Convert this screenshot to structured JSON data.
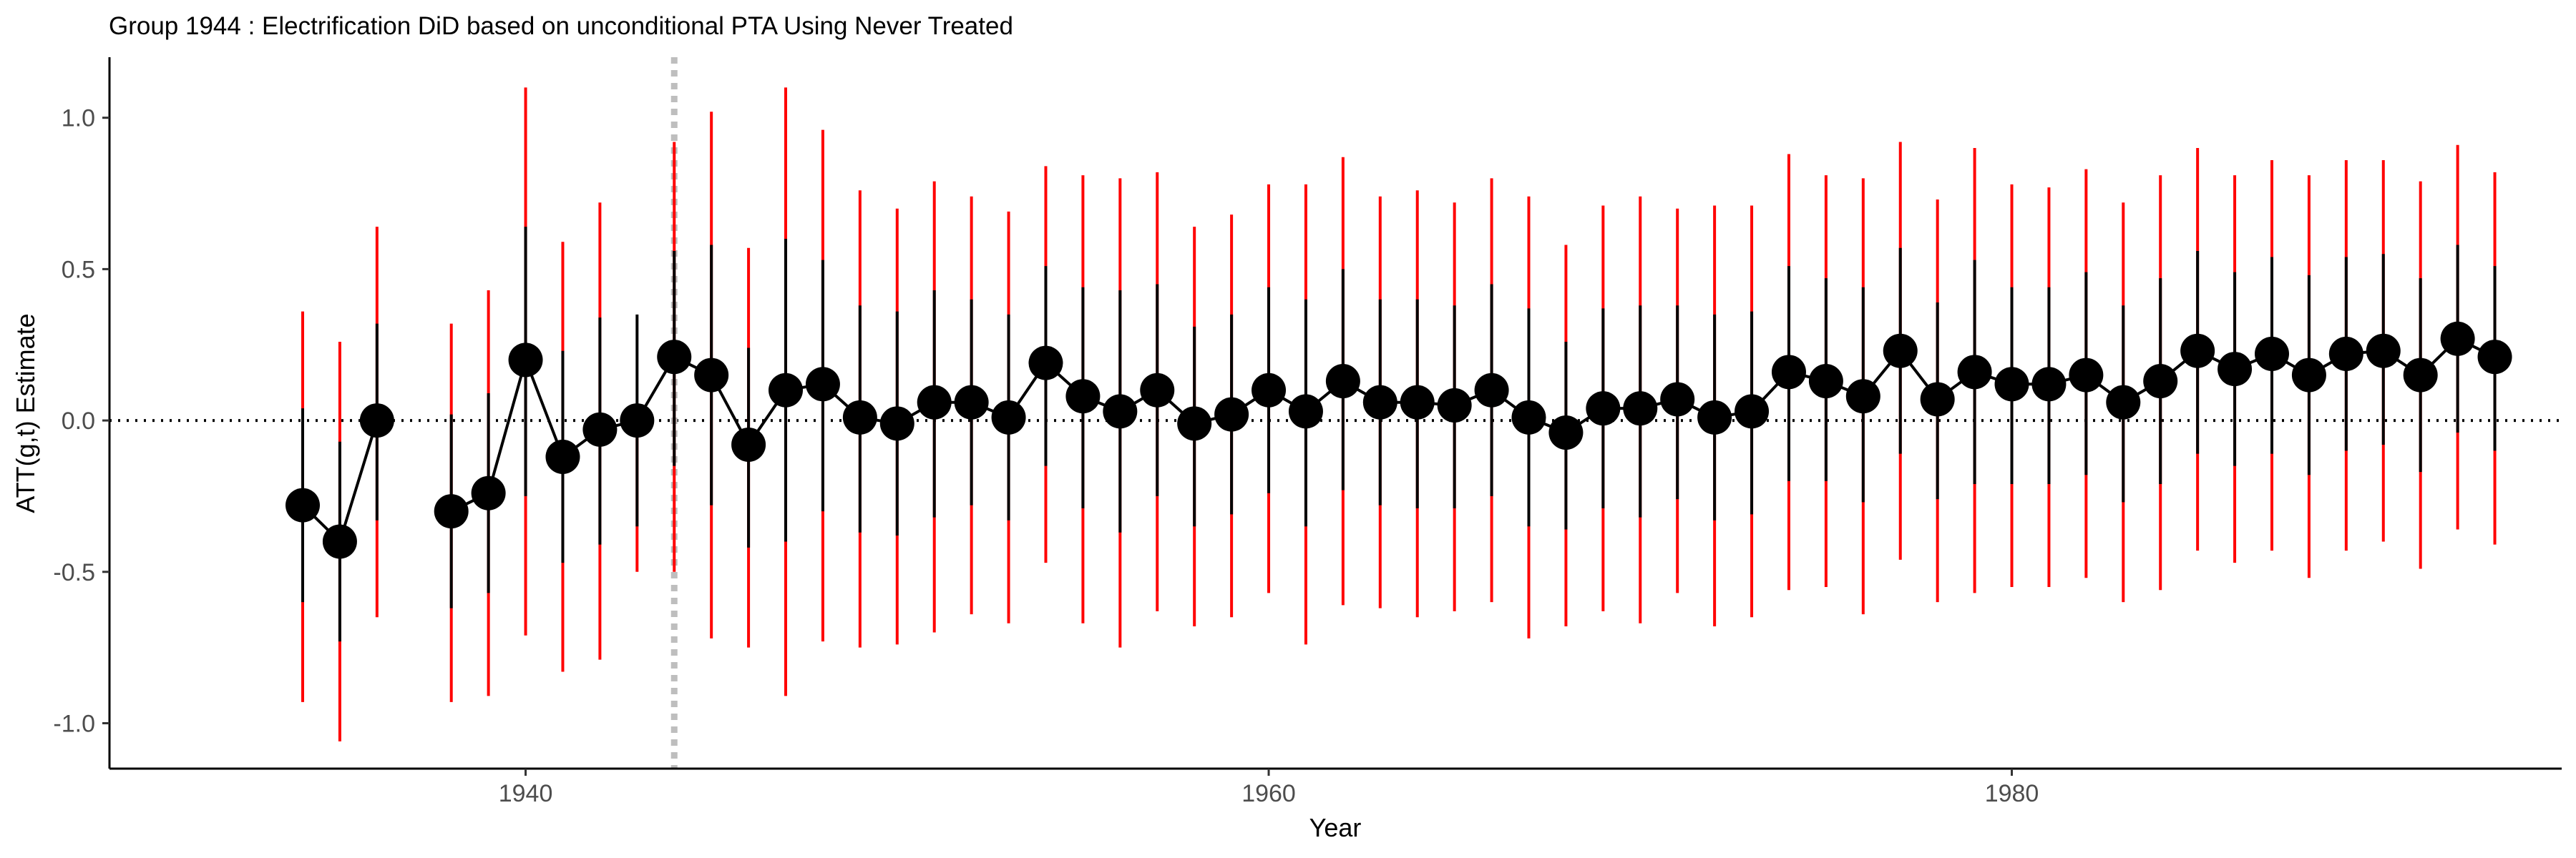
{
  "chart_data": {
    "type": "scatter",
    "title": "Group 1944 : Electrification DiD based on unconditional PTA Using Never Treated",
    "xlabel": "Year",
    "ylabel": "ATT(g,t) Estimate",
    "xlim": [
      1928.8,
      1994.8
    ],
    "ylim": [
      -1.15,
      1.2
    ],
    "x_ticks": [
      1940,
      1960,
      1980
    ],
    "y_ticks": [
      -1.0,
      -0.5,
      0.0,
      0.5,
      1.0
    ],
    "x_tick_labels": [
      "1940",
      "1960",
      "1980"
    ],
    "y_tick_labels": [
      "-1.0",
      "-0.5",
      "0.0",
      "0.5",
      "1.0"
    ],
    "treatment_year": 1944,
    "reference_line_y": 0,
    "grid": false,
    "colors": {
      "point": "#000000",
      "line": "#000000",
      "pointwise_ci": "#000000",
      "uniform_ci": "#ff0000",
      "reference_line": "#000000",
      "treatment_line": "#bebebe"
    },
    "series": [
      {
        "x": [
          1934,
          1935,
          1936,
          1938,
          1939,
          1940,
          1941,
          1942,
          1943,
          1944,
          1945,
          1946,
          1947,
          1948,
          1949,
          1950,
          1951,
          1952,
          1953,
          1954,
          1955,
          1956,
          1957,
          1958,
          1959,
          1960,
          1961,
          1962,
          1963,
          1964,
          1965,
          1966,
          1967,
          1968,
          1969,
          1970,
          1971,
          1972,
          1973,
          1974,
          1975,
          1976,
          1977,
          1978,
          1979,
          1980,
          1981,
          1982,
          1983,
          1984,
          1985,
          1986,
          1987,
          1988,
          1989,
          1990,
          1991,
          1992,
          1993
        ],
        "y": [
          -0.28,
          -0.4,
          0.0,
          -0.3,
          -0.24,
          0.2,
          -0.12,
          -0.03,
          0.0,
          0.21,
          0.15,
          -0.08,
          0.1,
          0.12,
          0.01,
          -0.01,
          0.06,
          0.06,
          0.01,
          0.19,
          0.08,
          0.03,
          0.1,
          -0.01,
          0.02,
          0.1,
          0.03,
          0.13,
          0.06,
          0.06,
          0.05,
          0.1,
          0.01,
          -0.04,
          0.04,
          0.04,
          0.07,
          0.01,
          0.03,
          0.16,
          0.13,
          0.08,
          0.23,
          0.07,
          0.16,
          0.12,
          0.12,
          0.15,
          0.06,
          0.13,
          0.23,
          0.17,
          0.22,
          0.15,
          0.22,
          0.23,
          0.15,
          0.27,
          0.21
        ],
        "pointwise_lower": [
          -0.6,
          -0.73,
          -0.33,
          -0.62,
          -0.57,
          -0.25,
          -0.47,
          -0.41,
          -0.35,
          -0.15,
          -0.28,
          -0.42,
          -0.4,
          -0.3,
          -0.37,
          -0.38,
          -0.32,
          -0.28,
          -0.33,
          -0.15,
          -0.29,
          -0.37,
          -0.25,
          -0.35,
          -0.31,
          -0.24,
          -0.35,
          -0.23,
          -0.28,
          -0.29,
          -0.29,
          -0.25,
          -0.35,
          -0.36,
          -0.29,
          -0.32,
          -0.26,
          -0.33,
          -0.31,
          -0.2,
          -0.2,
          -0.27,
          -0.11,
          -0.26,
          -0.21,
          -0.21,
          -0.21,
          -0.18,
          -0.27,
          -0.21,
          -0.11,
          -0.15,
          -0.11,
          -0.18,
          -0.1,
          -0.08,
          -0.17,
          -0.04,
          -0.1
        ],
        "pointwise_upper": [
          0.04,
          -0.07,
          0.32,
          0.02,
          0.09,
          0.64,
          0.23,
          0.34,
          0.35,
          0.56,
          0.58,
          0.24,
          0.6,
          0.53,
          0.38,
          0.36,
          0.43,
          0.4,
          0.35,
          0.51,
          0.44,
          0.43,
          0.45,
          0.31,
          0.35,
          0.44,
          0.4,
          0.5,
          0.4,
          0.4,
          0.38,
          0.45,
          0.37,
          0.26,
          0.37,
          0.38,
          0.38,
          0.35,
          0.36,
          0.51,
          0.47,
          0.44,
          0.57,
          0.39,
          0.53,
          0.44,
          0.44,
          0.49,
          0.38,
          0.47,
          0.56,
          0.49,
          0.54,
          0.48,
          0.54,
          0.55,
          0.47,
          0.58,
          0.51
        ],
        "uniform_lower": [
          -0.93,
          -1.06,
          -0.65,
          -0.93,
          -0.91,
          -0.71,
          -0.83,
          -0.79,
          -0.5,
          -0.5,
          -0.72,
          -0.75,
          -0.91,
          -0.73,
          -0.75,
          -0.74,
          -0.7,
          -0.64,
          -0.67,
          -0.47,
          -0.67,
          -0.75,
          -0.63,
          -0.68,
          -0.65,
          -0.57,
          -0.74,
          -0.61,
          -0.62,
          -0.65,
          -0.63,
          -0.6,
          -0.72,
          -0.68,
          -0.63,
          -0.67,
          -0.57,
          -0.68,
          -0.65,
          -0.56,
          -0.55,
          -0.64,
          -0.46,
          -0.6,
          -0.57,
          -0.55,
          -0.55,
          -0.52,
          -0.6,
          -0.56,
          -0.43,
          -0.47,
          -0.43,
          -0.52,
          -0.43,
          -0.4,
          -0.49,
          -0.36,
          -0.41
        ],
        "uniform_upper": [
          0.36,
          0.26,
          0.64,
          0.32,
          0.43,
          1.1,
          0.59,
          0.72,
          0.0,
          0.92,
          1.02,
          0.57,
          1.1,
          0.96,
          0.76,
          0.7,
          0.79,
          0.74,
          0.69,
          0.84,
          0.81,
          0.8,
          0.82,
          0.64,
          0.68,
          0.78,
          0.78,
          0.87,
          0.74,
          0.76,
          0.72,
          0.8,
          0.74,
          0.58,
          0.71,
          0.74,
          0.7,
          0.71,
          0.71,
          0.88,
          0.81,
          0.8,
          0.92,
          0.73,
          0.9,
          0.78,
          0.77,
          0.83,
          0.72,
          0.81,
          0.9,
          0.81,
          0.86,
          0.81,
          0.86,
          0.86,
          0.79,
          0.91,
          0.82
        ]
      }
    ]
  }
}
